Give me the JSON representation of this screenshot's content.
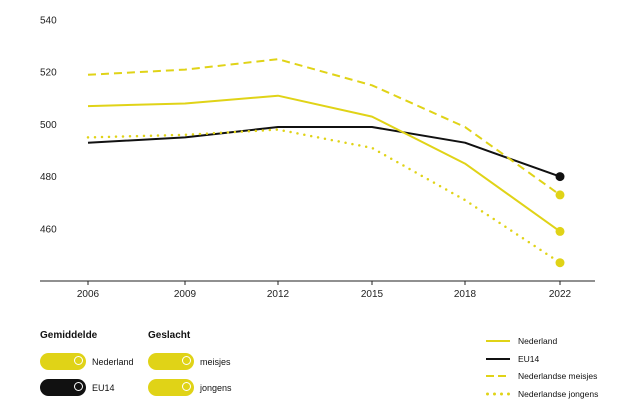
{
  "chart_data": {
    "type": "line",
    "x": [
      "2006",
      "2009",
      "2012",
      "2015",
      "2018",
      "2022"
    ],
    "y_ticks": [
      460,
      480,
      500,
      520,
      540
    ],
    "ylim": [
      440,
      540
    ],
    "series": [
      {
        "name": "Nederland",
        "values": [
          507,
          508,
          511,
          503,
          485,
          459
        ],
        "color": "#e0d317",
        "style": "solid"
      },
      {
        "name": "EU14",
        "values": [
          493,
          495,
          499,
          499,
          493,
          480
        ],
        "color": "#111111",
        "style": "solid"
      },
      {
        "name": "Nederlandse meisjes",
        "values": [
          519,
          521,
          525,
          515,
          499,
          473
        ],
        "color": "#e0d317",
        "style": "dashed"
      },
      {
        "name": "Nederlandse jongens",
        "values": [
          495,
          496,
          498,
          491,
          471,
          447
        ],
        "color": "#e0d317",
        "style": "dotted"
      }
    ],
    "grid": false,
    "legend_position": "bottom-right"
  },
  "controls": {
    "gemiddelde": {
      "title": "Gemiddelde",
      "items": [
        {
          "label": "Nederland",
          "color": "#e0d317"
        },
        {
          "label": "EU14",
          "color": "#111111"
        }
      ]
    },
    "geslacht": {
      "title": "Geslacht",
      "items": [
        {
          "label": "meisjes",
          "color": "#e0d317"
        },
        {
          "label": "jongens",
          "color": "#e0d317"
        }
      ]
    }
  },
  "legend": {
    "items": [
      {
        "label": "Nederland",
        "style": "solid",
        "color": "#e0d317"
      },
      {
        "label": "EU14",
        "style": "solid",
        "color": "#111111"
      },
      {
        "label": "Nederlandse meisjes",
        "style": "dashed",
        "color": "#e0d317"
      },
      {
        "label": "Nederlandse jongens",
        "style": "dotted",
        "color": "#e0d317"
      }
    ]
  }
}
